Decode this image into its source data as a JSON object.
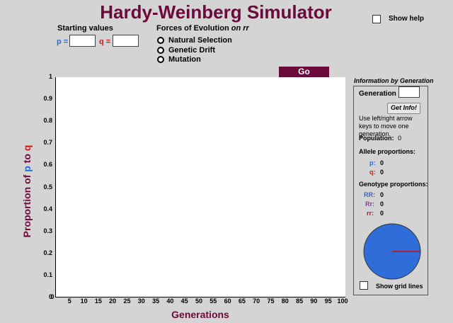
{
  "title": "Hardy-Weinberg Simulator",
  "show_help": "Show help",
  "starting_values": {
    "heading": "Starting values",
    "p_label": "p =",
    "q_label": "q ="
  },
  "forces": {
    "heading": "Forces of Evolution",
    "heading_suffix": "on rr",
    "options": [
      "Natural Selection",
      "Genetic Drift",
      "Mutation"
    ]
  },
  "go_label": "Go",
  "chart_data": {
    "type": "line",
    "title": "",
    "xlabel": "Generations",
    "ylabel_parts": [
      "Proportion of ",
      "p",
      " to ",
      "q"
    ],
    "xlim": [
      0,
      100
    ],
    "ylim": [
      0,
      1
    ],
    "x_ticks": [
      "0",
      "5",
      "10",
      "15",
      "20",
      "25",
      "30",
      "35",
      "40",
      "45",
      "50",
      "55",
      "60",
      "65",
      "70",
      "75",
      "80",
      "85",
      "90",
      "95",
      "100"
    ],
    "y_ticks": [
      "0",
      "0.1",
      "0.2",
      "0.3",
      "0.4",
      "0.5",
      "0.6",
      "0.7",
      "0.8",
      "0.9",
      "1"
    ],
    "series": []
  },
  "info_panel": {
    "heading": "Information by Generation",
    "generation_label": "Generation",
    "get_info_label": "Get Info!",
    "hint": "Use left/right arrow keys to move one generation.",
    "population_label": "Population:",
    "population_value": "0",
    "allele_heading": "Allele proportions:",
    "p_label": "p:",
    "p_value": "0",
    "q_label": "q:",
    "q_value": "0",
    "genotype_heading": "Genotype proportions:",
    "RR_label": "RR:",
    "RR_value": "0",
    "Rr_label": "Rr:",
    "Rr_value": "0",
    "rr_label": "rr:",
    "rr_value": "0",
    "show_grid": "Show grid lines"
  },
  "colors": {
    "title": "#6b0a3a",
    "p": "#1f6fd8",
    "q": "#d01818",
    "RR": "#3a5fd8",
    "Rr": "#8a3aa8",
    "rr": "#a01830",
    "pie_fill": "#2f6ed8",
    "pie_line": "#cc1111"
  }
}
